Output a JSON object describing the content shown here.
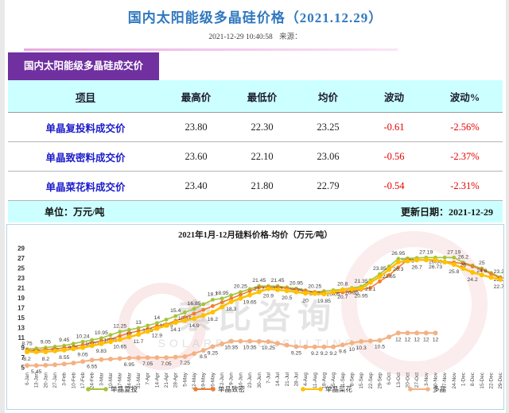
{
  "header": {
    "title": "国内太阳能级多晶硅价格（2021.12.29）",
    "datetime": "2021-12-29 10:40:58",
    "source_label": "来源："
  },
  "table": {
    "tab_label": "国内太阳能级多晶硅成交价",
    "columns": [
      "项目",
      "最高价",
      "最低价",
      "均价",
      "波动",
      "波动%"
    ],
    "rows": [
      {
        "item": "单晶复投料成交价",
        "high": "23.80",
        "low": "22.30",
        "avg": "23.25",
        "change": "-0.61",
        "change_pct": "-2.56%"
      },
      {
        "item": "单晶致密料成交价",
        "high": "23.60",
        "low": "22.10",
        "avg": "23.06",
        "change": "-0.56",
        "change_pct": "-2.37%"
      },
      {
        "item": "单晶菜花料成交价",
        "high": "23.40",
        "low": "21.80",
        "avg": "22.79",
        "change": "-0.54",
        "change_pct": "-2.31%"
      }
    ],
    "unit_label": "单位：万元/吨",
    "updated_label": "更新日期：2021-12-29"
  },
  "colors": {
    "title_blue": "#2f78be",
    "tab_purple": "#7030a0",
    "band_cyan": "#ccffff",
    "link_blue": "#1c1ccc",
    "negative_red": "#e60000"
  },
  "chart_data": {
    "type": "line",
    "title": "2021年1月-12月硅料价格-均价（万元/吨）",
    "ylim": [
      5,
      29
    ],
    "ytick_step": 2,
    "grid": false,
    "legend_position": "bottom",
    "watermark": {
      "cn": "索比咨询",
      "en": "SOLARBE CONSULTING"
    },
    "x": [
      "6-Jan",
      "13-Jan",
      "20-Jan",
      "27-Jan",
      "3-Feb",
      "10-Feb",
      "17-Feb",
      "24-Feb",
      "3-Mar",
      "10-Mar",
      "17-Mar",
      "24-Mar",
      "31-Mar",
      "7-Apr",
      "14-Apr",
      "21-Apr",
      "28-Apr",
      "5-May",
      "12-May",
      "19-May",
      "26-May",
      "2-Jun",
      "9-Jun",
      "16-Jun",
      "23-Jun",
      "30-Jun",
      "7-Jul",
      "14-Jul",
      "21-Jul",
      "28-Jul",
      "4-Aug",
      "11-Aug",
      "18-Aug",
      "25-Aug",
      "1-Sep",
      "8-Sep",
      "15-Sep",
      "22-Sep",
      "29-Sep",
      "6-Oct",
      "13-Oct",
      "20-Oct",
      "27-Oct",
      "3-Nov",
      "10-Nov",
      "17-Nov",
      "24-Nov",
      "1-Dec",
      "8-Dec",
      "15-Dec",
      "22-Dec",
      "29-Dec"
    ],
    "series": [
      {
        "name": "单晶复投",
        "color": "#a2c53a",
        "values": [
          8.75,
          8.9,
          9.05,
          9.25,
          9.45,
          9.85,
          10.24,
          10.6,
          10.95,
          11.6,
          12.25,
          12.63,
          13,
          13.5,
          14,
          14.7,
          15.4,
          16.13,
          16.85,
          17.78,
          18.7,
          18.95,
          19.6,
          20.25,
          20.85,
          21.45,
          21.45,
          21.45,
          21.2,
          20.95,
          20.6,
          20.25,
          20.43,
          20.62,
          20.8,
          21.08,
          21.35,
          22.6,
          23.85,
          25.4,
          26.95,
          27.03,
          27.11,
          27.19,
          27.19,
          27.19,
          27.19,
          26.2,
          25.6,
          25,
          24.1,
          23.25
        ],
        "labels": {
          "0": "8.75",
          "2": "9.05",
          "4": "9.45",
          "6": "10.24",
          "8": "10.95",
          "10": "12.25",
          "12": "13",
          "14": "14",
          "16": "15.4",
          "18": "16.85",
          "20": "18.7",
          "21": "18.95",
          "23": "20.25",
          "25": "21.45",
          "27": "21.45",
          "29": "20.95",
          "31": "20.25",
          "34": "20.8",
          "36": "21.35",
          "38": "23.85",
          "40": "26.95",
          "43": "27.19",
          "46": "27.19",
          "47": "26.2",
          "49": "25",
          "51": "23.25"
        }
      },
      {
        "name": "单晶致密",
        "color": "#ed7d31",
        "values": [
          8.5,
          8.5,
          8.65,
          8.8,
          9.0,
          9.25,
          9.6,
          10.02,
          10.4,
          10.75,
          11.4,
          12,
          12.4,
          12.8,
          13.4,
          13.75,
          14.45,
          15.15,
          15.9,
          16.66,
          17.42,
          18.18,
          18.94,
          19.7,
          20.45,
          21.2,
          21.2,
          21.2,
          20.98,
          20.75,
          20.48,
          20.2,
          20.13,
          20.05,
          20.2,
          20.35,
          20.73,
          21.1,
          22.38,
          23.65,
          25.2,
          26.75,
          26.7,
          26.64,
          26.58,
          26.39,
          26.2,
          26,
          25.4,
          24.8,
          23.9,
          23.04
        ],
        "labels": {
          "1": "8.5",
          "3": "8.8",
          "5": "9.25",
          "7": "10.02",
          "9": "10.75",
          "11": "12",
          "13": "12.8",
          "15": "13.75",
          "17": "15.15",
          "25": "21.2",
          "27": "21.2",
          "29": "20.75",
          "31": "20.2",
          "33": "20.05",
          "35": "20.35",
          "37": "21.1",
          "39": "23.65",
          "41": "26.75",
          "44": "26.58",
          "47": "26",
          "49": "24.8",
          "51": "23.04"
        }
      },
      {
        "name": "单晶菜花",
        "color": "#ffc000",
        "values": [
          8.2,
          8.2,
          8.2,
          8.38,
          8.55,
          8.8,
          9.05,
          9.44,
          9.83,
          10.24,
          10.65,
          11.18,
          11.7,
          12.3,
          12.9,
          13.5,
          14.1,
          14.5,
          14.9,
          15.55,
          16.2,
          17.25,
          18.3,
          18.98,
          19.65,
          20.28,
          20.9,
          20.7,
          20.5,
          20.25,
          20,
          19.93,
          19.85,
          20.28,
          20.7,
          20.83,
          20.95,
          22.2,
          23.3,
          24.8,
          26.3,
          26.5,
          26.7,
          26.72,
          26.73,
          26.27,
          25.8,
          25,
          24.2,
          23.7,
          23.2,
          22.77
        ],
        "labels": {
          "0": "8.2",
          "2": "8.2",
          "4": "8.55",
          "6": "9.05",
          "8": "9.83",
          "10": "10.65",
          "12": "11.7",
          "14": "12.9",
          "16": "14.1",
          "18": "14.9",
          "20": "16.2",
          "22": "18.3",
          "24": "19.65",
          "26": "20.9",
          "28": "20.5",
          "30": "20",
          "32": "19.85",
          "34": "20.7",
          "36": "20.95",
          "40": "26.3",
          "42": "26.7",
          "44": "26.73",
          "46": "25.8",
          "48": "24.2",
          "51": "22.77"
        }
      },
      {
        "name": "多晶",
        "color": "#f4b183",
        "values": [
          5.45,
          5.45,
          5.5,
          5.6,
          5.75,
          5.95,
          6.25,
          6.55,
          6.65,
          6.75,
          6.85,
          6.95,
          7.0,
          7.05,
          7.05,
          7.05,
          7.15,
          7.25,
          7.85,
          8.5,
          9.25,
          9.8,
          10.35,
          10.35,
          10.35,
          10.3,
          10.25,
          9.9,
          9.55,
          9.25,
          9.2,
          9.2,
          9.2,
          9.2,
          9.6,
          10,
          10.3,
          10.4,
          10.5,
          11.2,
          12,
          12,
          12,
          12,
          12,
          null,
          null,
          null,
          null,
          null,
          null,
          null
        ],
        "labels": {
          "1": "5.45",
          "7": "6.55",
          "11": "6.95",
          "13": "7.05",
          "15": "7.05",
          "17": "7.25",
          "19": "8.5",
          "20": "9.25",
          "22": "10.35",
          "24": "10.35",
          "26": "10.25",
          "29": "9.25",
          "31": "9.2",
          "32": "9.2",
          "33": "9.2",
          "34": "9.6",
          "35": "10",
          "36": "10.3",
          "38": "10.5",
          "40": "12",
          "41": "12",
          "42": "12",
          "43": "12",
          "44": "12"
        }
      }
    ]
  }
}
